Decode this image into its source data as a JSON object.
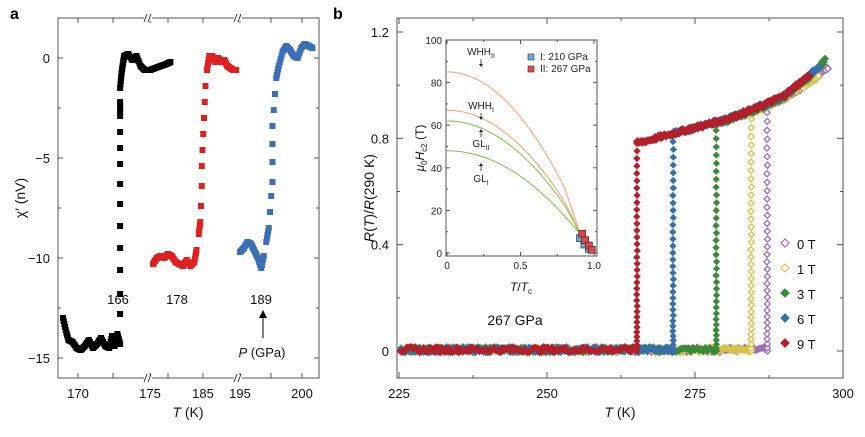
{
  "figure": {
    "panel_a_label": "a",
    "panel_b_label": "b"
  },
  "chart_data": [
    {
      "id": "panel-a",
      "type": "scatter",
      "title": "",
      "xlabel": "T (K)",
      "ylabel": "χ′ (nV)",
      "ylim": [
        -16,
        2
      ],
      "yticks": [
        0,
        -5,
        -10,
        -15
      ],
      "ytick_labels": [
        "0",
        "−5",
        "−10",
        "−15"
      ],
      "x_segments": [
        {
          "range": [
            168.5,
            176.5
          ],
          "ticks": [
            170,
            175
          ],
          "tick_labels": [
            "170",
            ""
          ]
        },
        {
          "range": [
            175,
            189
          ],
          "ticks": [
            175,
            185
          ],
          "tick_labels": [
            "175",
            "185"
          ]
        },
        {
          "range": [
            195,
            201.5
          ],
          "ticks": [
            195,
            200
          ],
          "tick_labels": [
            "195",
            "200"
          ]
        }
      ],
      "axis_breaks": "//",
      "annotation_arrow": "P (GPa)",
      "series": [
        {
          "name": "166",
          "color": "#000000",
          "segment": 0,
          "points": [
            [
              168.6,
              -13.0
            ],
            [
              168.8,
              -13.6
            ],
            [
              169.0,
              -14.1
            ],
            [
              169.3,
              -14.2
            ],
            [
              169.6,
              -14.5
            ],
            [
              169.9,
              -14.6
            ],
            [
              170.2,
              -14.4
            ],
            [
              170.5,
              -14.1
            ],
            [
              170.8,
              -14.5
            ],
            [
              171.1,
              -14.3
            ],
            [
              171.4,
              -14.0
            ],
            [
              171.7,
              -14.4
            ],
            [
              172.0,
              -14.5
            ],
            [
              172.2,
              -13.9
            ],
            [
              172.4,
              -14.4
            ],
            [
              172.6,
              -13.8
            ],
            [
              172.8,
              -14.3
            ],
            [
              172.8,
              -12.8
            ],
            [
              172.8,
              -11.8
            ],
            [
              172.8,
              -10.6
            ],
            [
              172.8,
              -9.5
            ],
            [
              172.8,
              -8.4
            ],
            [
              172.8,
              -7.3
            ],
            [
              172.8,
              -6.3
            ],
            [
              172.8,
              -5.3
            ],
            [
              172.8,
              -4.5
            ],
            [
              172.8,
              -3.7
            ],
            [
              172.8,
              -2.9
            ],
            [
              172.8,
              -2.2
            ],
            [
              172.8,
              -1.5
            ],
            [
              172.9,
              -0.8
            ],
            [
              173.0,
              -0.3
            ],
            [
              173.1,
              0.1
            ],
            [
              173.4,
              0.2
            ],
            [
              173.7,
              -0.1
            ],
            [
              174.0,
              0.1
            ],
            [
              174.3,
              -0.4
            ],
            [
              174.6,
              -0.6
            ],
            [
              175.0,
              -0.6
            ],
            [
              175.4,
              -0.5
            ],
            [
              175.8,
              -0.4
            ],
            [
              176.2,
              -0.3
            ],
            [
              176.5,
              -0.2
            ]
          ]
        },
        {
          "name": "178",
          "color": "#e02020",
          "segment": 1,
          "points": [
            [
              176.5,
              -10.3
            ],
            [
              177.0,
              -10.0
            ],
            [
              177.5,
              -9.9
            ],
            [
              178.0,
              -10.0
            ],
            [
              178.5,
              -9.8
            ],
            [
              179.0,
              -9.9
            ],
            [
              179.5,
              -10.2
            ],
            [
              180.0,
              -10.3
            ],
            [
              180.5,
              -10.4
            ],
            [
              181.0,
              -10.1
            ],
            [
              181.5,
              -10.4
            ],
            [
              182.0,
              -10.2
            ],
            [
              182.3,
              -9.6
            ],
            [
              182.6,
              -8.8
            ],
            [
              182.8,
              -8.2
            ],
            [
              182.9,
              -7.4
            ],
            [
              183.0,
              -6.4
            ],
            [
              183.0,
              -5.4
            ],
            [
              183.1,
              -4.6
            ],
            [
              183.2,
              -3.8
            ],
            [
              183.3,
              -3.0
            ],
            [
              183.4,
              -2.2
            ],
            [
              183.5,
              -1.4
            ],
            [
              183.7,
              -0.6
            ],
            [
              184.0,
              0.1
            ],
            [
              184.4,
              0.1
            ],
            [
              184.8,
              -0.2
            ],
            [
              185.2,
              0.0
            ],
            [
              185.6,
              -0.2
            ],
            [
              186.0,
              -0.1
            ],
            [
              186.4,
              -0.4
            ],
            [
              186.8,
              -0.5
            ],
            [
              187.2,
              -0.6
            ],
            [
              187.6,
              -0.6
            ]
          ]
        },
        {
          "name": "189",
          "color": "#3b6fb6",
          "segment": 2,
          "points": [
            [
              195.3,
              -9.7
            ],
            [
              195.6,
              -9.5
            ],
            [
              195.9,
              -9.2
            ],
            [
              196.2,
              -9.3
            ],
            [
              196.5,
              -9.7
            ],
            [
              196.8,
              -10.1
            ],
            [
              197.0,
              -10.5
            ],
            [
              197.2,
              -9.9
            ],
            [
              197.4,
              -9.2
            ],
            [
              197.6,
              -8.5
            ],
            [
              197.7,
              -7.7
            ],
            [
              197.8,
              -6.9
            ],
            [
              197.9,
              -6.2
            ],
            [
              197.9,
              -5.2
            ],
            [
              197.9,
              -4.3
            ],
            [
              197.9,
              -3.4
            ],
            [
              198.0,
              -2.6
            ],
            [
              198.1,
              -1.8
            ],
            [
              198.2,
              -1.0
            ],
            [
              198.4,
              -0.4
            ],
            [
              198.7,
              0.3
            ],
            [
              199.0,
              0.6
            ],
            [
              199.3,
              0.4
            ],
            [
              199.6,
              0.1
            ],
            [
              199.9,
              0.0
            ],
            [
              200.2,
              0.5
            ],
            [
              200.5,
              0.7
            ],
            [
              200.8,
              0.6
            ],
            [
              201.1,
              0.5
            ]
          ]
        }
      ],
      "series_labels": [
        "166",
        "178",
        "189"
      ]
    },
    {
      "id": "panel-b",
      "type": "scatter",
      "title": "",
      "xlabel": "T (K)",
      "ylabel": "R(T)/R(290 K)",
      "xlim": [
        225,
        300
      ],
      "ylim": [
        -0.1,
        1.26
      ],
      "xticks": [
        225,
        250,
        275,
        300
      ],
      "xtick_labels": [
        "225",
        "250",
        "275",
        "300"
      ],
      "yticks": [
        0,
        0.4,
        0.8,
        1.2
      ],
      "ytick_labels": [
        "0",
        "0.4",
        "0.8",
        "1.2"
      ],
      "annotation": "267 GPa",
      "legend": {
        "placement": "right",
        "entries": [
          "0 T",
          "1 T",
          "3 T",
          "6 T",
          "9 T"
        ]
      },
      "series": [
        {
          "name": "0 T",
          "color": "#9b6fb4",
          "open": true,
          "Tc": 287.2
        },
        {
          "name": "1 T",
          "color": "#d9c24a",
          "open": true,
          "Tc": 284.5
        },
        {
          "name": "3 T",
          "color": "#3b8a3a",
          "open": false,
          "Tc": 278.6
        },
        {
          "name": "6 T",
          "color": "#3570ab",
          "open": false,
          "Tc": 271.3
        },
        {
          "name": "9 T",
          "color": "#b2202a",
          "open": false,
          "Tc": 265.2
        }
      ],
      "normal_state": {
        "T": [
          265,
          270,
          275,
          280,
          285,
          290,
          295,
          297
        ],
        "R": [
          0.78,
          0.81,
          0.84,
          0.87,
          0.91,
          0.96,
          1.05,
          1.1
        ]
      }
    },
    {
      "id": "panel-b-inset",
      "type": "line",
      "xlabel": "T/Tc",
      "ylabel": "μ0Hc2 (T)",
      "xlim": [
        0,
        1.05
      ],
      "ylim": [
        -2,
        100
      ],
      "xticks": [
        0,
        0.5,
        1.0
      ],
      "xtick_labels": [
        "0",
        "0.5",
        "1.0"
      ],
      "yticks": [
        0,
        20,
        40,
        60,
        80,
        100
      ],
      "ytick_labels": [
        "0",
        "20",
        "40",
        "60",
        "80",
        "100"
      ],
      "legend": {
        "placement": "top-right",
        "entries": [
          "I: 210 GPa",
          "II: 267 GPa"
        ]
      },
      "curves": [
        {
          "name": "WHH_II",
          "label": "WHH",
          "sub": "II",
          "color": "#f2a57a",
          "H0": 85
        },
        {
          "name": "WHH_I",
          "label": "WHH",
          "sub": "I",
          "color": "#f2a57a",
          "H0": 67
        },
        {
          "name": "GL_II",
          "label": "GL",
          "sub": "II",
          "color": "#8cbf5a",
          "H0": 62
        },
        {
          "name": "GL_I",
          "label": "GL",
          "sub": "I",
          "color": "#8cbf5a",
          "H0": 48
        }
      ],
      "series": [
        {
          "name": "I: 210 GPa",
          "color": "#6aa9e0",
          "points": [
            [
              0.905,
              7
            ],
            [
              0.935,
              4
            ],
            [
              0.965,
              2
            ]
          ]
        },
        {
          "name": "II: 267 GPa",
          "color": "#e0484e",
          "points": [
            [
              0.92,
              9
            ],
            [
              0.94,
              6
            ],
            [
              0.965,
              3.5
            ],
            [
              0.985,
              1.5
            ]
          ]
        }
      ]
    }
  ]
}
